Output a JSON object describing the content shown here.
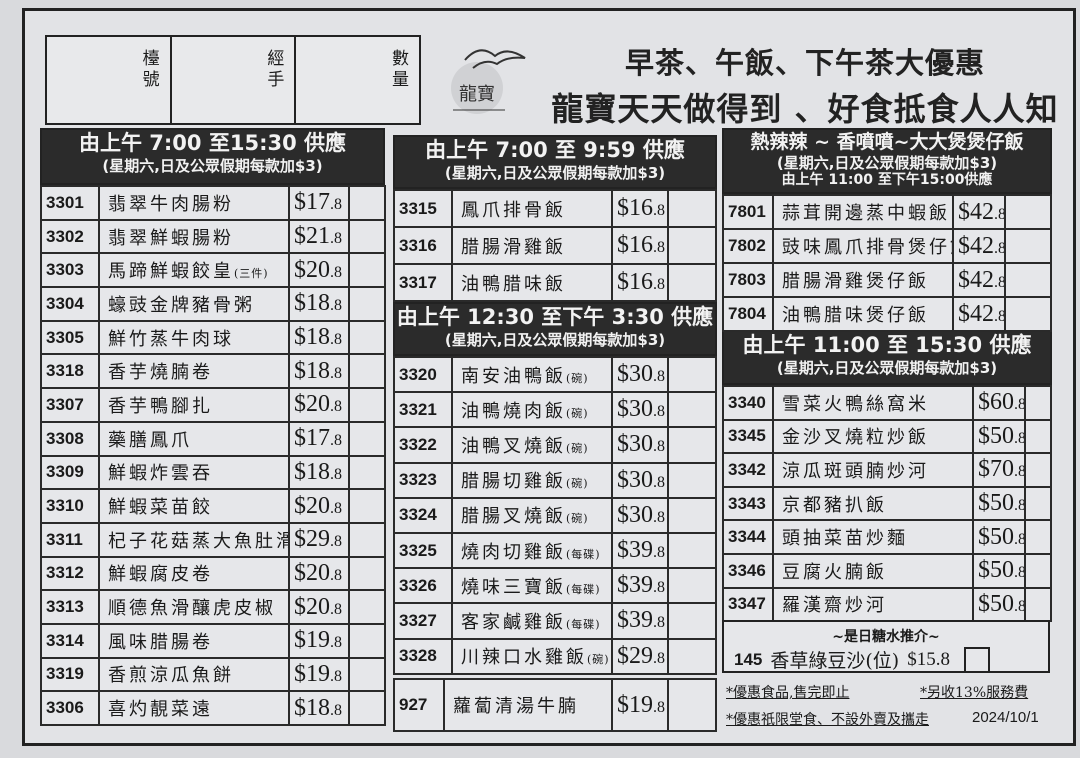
{
  "order_box": {
    "table_label": "檯號",
    "handler_label": "經手",
    "quantity_label": "數量"
  },
  "logo_text": "龍寶",
  "headline": {
    "line1": "早茶、午飯、下午茶大優惠",
    "line2": "龍寶天天做得到 、好食抵食人人知"
  },
  "sections": [
    {
      "h1": "由上午 7:00 至15:30 供應",
      "h2": "(星期六,日及公眾假期每款加$3)",
      "items": [
        {
          "code": "3301",
          "name": "翡翠牛肉腸粉",
          "price": "$17",
          "cents": ".8"
        },
        {
          "code": "3302",
          "name": "翡翠鮮蝦腸粉",
          "price": "$21",
          "cents": ".8"
        },
        {
          "code": "3303",
          "name": "馬蹄鮮蝦餃皇",
          "note": "(三件)",
          "price": "$20",
          "cents": ".8"
        },
        {
          "code": "3304",
          "name": "蠔豉金牌豬骨粥",
          "price": "$18",
          "cents": ".8"
        },
        {
          "code": "3305",
          "name": "鮮竹蒸牛肉球",
          "price": "$18",
          "cents": ".8"
        },
        {
          "code": "3318",
          "name": "香芋燒腩卷",
          "price": "$18",
          "cents": ".8"
        },
        {
          "code": "3307",
          "name": "香芋鴨腳扎",
          "price": "$20",
          "cents": ".8"
        },
        {
          "code": "3308",
          "name": "藥膳鳳爪",
          "price": "$17",
          "cents": ".8"
        },
        {
          "code": "3309",
          "name": "鮮蝦炸雲吞",
          "price": "$18",
          "cents": ".8"
        },
        {
          "code": "3310",
          "name": "鮮蝦菜苗餃",
          "price": "$20",
          "cents": ".8"
        },
        {
          "code": "3311",
          "name": "杞子花菇蒸大魚肚滑雞",
          "price": "$29",
          "cents": ".8"
        },
        {
          "code": "3312",
          "name": "鮮蝦腐皮卷",
          "price": "$20",
          "cents": ".8"
        },
        {
          "code": "3313",
          "name": "順德魚滑釀虎皮椒",
          "price": "$20",
          "cents": ".8"
        },
        {
          "code": "3314",
          "name": "風味腊腸卷",
          "price": "$19",
          "cents": ".8"
        },
        {
          "code": "3319",
          "name": "香煎涼瓜魚餅",
          "price": "$19",
          "cents": ".8"
        },
        {
          "code": "3306",
          "name": "喜灼靚菜遠",
          "price": "$18",
          "cents": ".8"
        }
      ]
    },
    {
      "h1": "由上午 7:00 至 9:59 供應",
      "h2": "(星期六,日及公眾假期每款加$3)",
      "items": [
        {
          "code": "3315",
          "name": "鳳爪排骨飯",
          "price": "$16",
          "cents": ".8"
        },
        {
          "code": "3316",
          "name": "腊腸滑雞飯",
          "price": "$16",
          "cents": ".8"
        },
        {
          "code": "3317",
          "name": "油鴨腊味飯",
          "price": "$16",
          "cents": ".8"
        }
      ]
    },
    {
      "h1": "由上午 12:30 至下午 3:30 供應",
      "h2": "(星期六,日及公眾假期每款加$3)",
      "items": [
        {
          "code": "3320",
          "name": "南安油鴨飯",
          "note": "(碗)",
          "price": "$30",
          "cents": ".8"
        },
        {
          "code": "3321",
          "name": "油鴨燒肉飯",
          "note": "(碗)",
          "price": "$30",
          "cents": ".8"
        },
        {
          "code": "3322",
          "name": "油鴨叉燒飯",
          "note": "(碗)",
          "price": "$30",
          "cents": ".8"
        },
        {
          "code": "3323",
          "name": "腊腸切雞飯",
          "note": "(碗)",
          "price": "$30",
          "cents": ".8"
        },
        {
          "code": "3324",
          "name": "腊腸叉燒飯",
          "note": "(碗)",
          "price": "$30",
          "cents": ".8"
        },
        {
          "code": "3325",
          "name": "燒肉切雞飯",
          "note": "(每碟)",
          "price": "$39",
          "cents": ".8"
        },
        {
          "code": "3326",
          "name": "燒味三寶飯",
          "note": "(每碟)",
          "price": "$39",
          "cents": ".8"
        },
        {
          "code": "3327",
          "name": "客家鹹雞飯",
          "note": "(每碟)",
          "price": "$39",
          "cents": ".8"
        },
        {
          "code": "3328",
          "name": "川辣口水雞飯",
          "note": "(碗)",
          "price": "$29",
          "cents": ".8"
        }
      ]
    },
    {
      "items": [
        {
          "code": "927",
          "name": "蘿蔔清湯牛腩",
          "price": "$19",
          "cents": ".8"
        }
      ]
    },
    {
      "h1": "熱辣辣 ~ 香噴噴~大大煲煲仔飯",
      "h2": "(星期六,日及公眾假期每款加$3)",
      "h3": "由上午 11:00 至下午15:00供應",
      "items": [
        {
          "code": "7801",
          "name": "蒜茸開邊蒸中蝦飯",
          "price": "$42",
          "cents": ".8"
        },
        {
          "code": "7802",
          "name": "豉味鳳爪排骨煲仔飯",
          "price": "$42",
          "cents": ".8"
        },
        {
          "code": "7803",
          "name": "腊腸滑雞煲仔飯",
          "price": "$42",
          "cents": ".8"
        },
        {
          "code": "7804",
          "name": "油鴨腊味煲仔飯",
          "price": "$42",
          "cents": ".8"
        }
      ]
    },
    {
      "h1": "由上午 11:00 至 15:30 供應",
      "h2": "(星期六,日及公眾假期每款加$3)",
      "items": [
        {
          "code": "3340",
          "name": "雪菜火鴨絲窩米",
          "price": "$60",
          "cents": ".8"
        },
        {
          "code": "3345",
          "name": "金沙叉燒粒炒飯",
          "price": "$50",
          "cents": ".8"
        },
        {
          "code": "3342",
          "name": "涼瓜斑頭腩炒河",
          "price": "$70",
          "cents": ".8"
        },
        {
          "code": "3343",
          "name": "京都豬扒飯",
          "price": "$50",
          "cents": ".8"
        },
        {
          "code": "3344",
          "name": "頭抽菜苗炒麵",
          "price": "$50",
          "cents": ".8"
        },
        {
          "code": "3346",
          "name": "豆腐火腩飯",
          "price": "$50",
          "cents": ".8"
        },
        {
          "code": "3347",
          "name": "羅漢齋炒河",
          "price": "$50",
          "cents": ".8"
        }
      ]
    }
  ],
  "dessert": {
    "title": "~是日糖水推介~",
    "code": "145",
    "name": "香草綠豆沙(位)",
    "price": "$15.8"
  },
  "notes": {
    "n1": "*優惠食品,售完即止",
    "n2": "*另收13%服務費",
    "n3": "*優惠祇限堂食、不設外賣及攜走",
    "date": "2024/10/1"
  }
}
